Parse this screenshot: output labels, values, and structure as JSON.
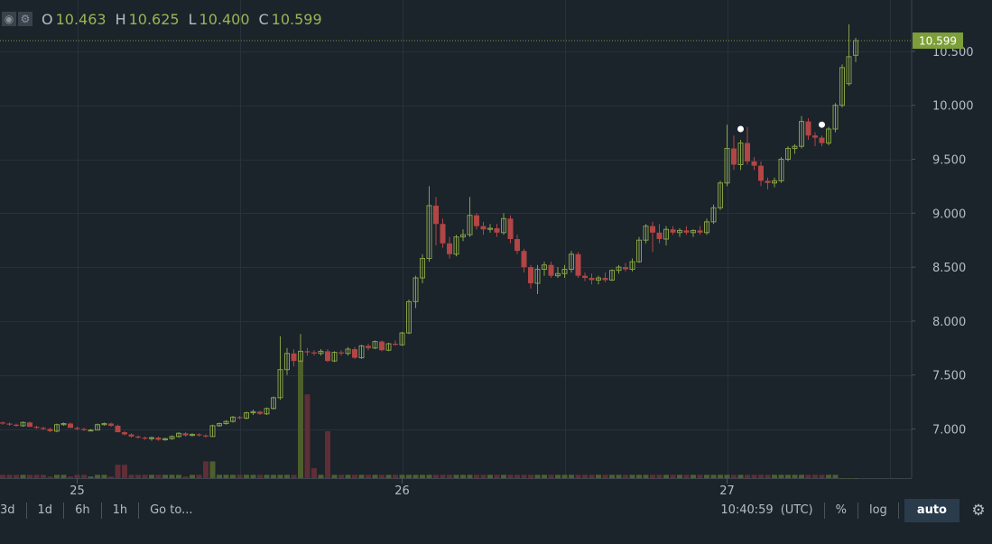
{
  "toolbar": {
    "icons": [
      "eye-icon",
      "gear-icon"
    ],
    "open_label": "O",
    "open_value": "10.463",
    "high_label": "H",
    "high_value": "10.625",
    "low_label": "L",
    "low_value": "10.400",
    "close_label": "C",
    "close_value": "10.599"
  },
  "last_price_label": "10.599",
  "bottom_bar": {
    "ranges": [
      "3d",
      "1d",
      "6h",
      "1h"
    ],
    "goto_label": "Go to...",
    "time": "10:40:59",
    "timezone": "(UTC)",
    "percent_label": "%",
    "log_label": "log",
    "auto_label": "auto"
  },
  "colors": {
    "background": "#1b232b",
    "up": "#84a045",
    "down": "#b24545",
    "grid": "#27323b",
    "text": "#b4bcc4",
    "price_tag": "#7d9f3a"
  },
  "chart_data": {
    "type": "candlestick",
    "interval": "1h",
    "y_ticks": [
      7.0,
      7.5,
      8.0,
      8.5,
      9.0,
      9.5,
      10.0,
      10.5
    ],
    "y_tick_labels": [
      "7.000",
      "7.500",
      "8.000",
      "8.500",
      "9.000",
      "9.500",
      "10.000",
      "10.500"
    ],
    "x_tick_labels": [
      "25",
      "26",
      "27"
    ],
    "day_start_index": [
      11,
      59,
      107
    ],
    "last_price": 10.599,
    "marker_indices": [
      109,
      121,
      127,
      128
    ],
    "candles": [
      [
        7.06,
        7.07,
        7.04,
        7.05
      ],
      [
        7.05,
        7.06,
        7.03,
        7.04
      ],
      [
        7.04,
        7.05,
        7.02,
        7.03
      ],
      [
        7.03,
        7.07,
        7.02,
        7.06
      ],
      [
        7.06,
        7.07,
        7.02,
        7.02
      ],
      [
        7.02,
        7.03,
        7.0,
        7.01
      ],
      [
        7.01,
        7.02,
        6.99,
        7.0
      ],
      [
        7.0,
        7.01,
        6.97,
        6.98
      ],
      [
        6.98,
        7.05,
        6.97,
        7.04
      ],
      [
        7.04,
        7.06,
        7.03,
        7.05
      ],
      [
        7.05,
        7.06,
        7.01,
        7.01
      ],
      [
        7.01,
        7.02,
        6.99,
        7.0
      ],
      [
        7.0,
        7.01,
        6.98,
        6.99
      ],
      [
        6.99,
        7.0,
        6.98,
        6.99
      ],
      [
        6.99,
        7.05,
        6.99,
        7.04
      ],
      [
        7.04,
        7.06,
        7.03,
        7.05
      ],
      [
        7.05,
        7.06,
        7.02,
        7.03
      ],
      [
        7.03,
        7.04,
        6.97,
        6.97
      ],
      [
        6.97,
        6.98,
        6.94,
        6.95
      ],
      [
        6.95,
        6.96,
        6.92,
        6.93
      ],
      [
        6.93,
        6.94,
        6.91,
        6.92
      ],
      [
        6.92,
        6.93,
        6.9,
        6.91
      ],
      [
        6.91,
        6.93,
        6.89,
        6.92
      ],
      [
        6.92,
        6.93,
        6.89,
        6.9
      ],
      [
        6.9,
        6.92,
        6.89,
        6.91
      ],
      [
        6.91,
        6.94,
        6.9,
        6.93
      ],
      [
        6.93,
        6.97,
        6.92,
        6.96
      ],
      [
        6.96,
        6.97,
        6.93,
        6.94
      ],
      [
        6.94,
        6.96,
        6.93,
        6.95
      ],
      [
        6.95,
        6.96,
        6.93,
        6.94
      ],
      [
        6.94,
        6.95,
        6.92,
        6.93
      ],
      [
        6.93,
        7.04,
        6.93,
        7.03
      ],
      [
        7.03,
        7.06,
        7.02,
        7.05
      ],
      [
        7.05,
        7.08,
        7.04,
        7.07
      ],
      [
        7.07,
        7.12,
        7.06,
        7.11
      ],
      [
        7.11,
        7.12,
        7.09,
        7.1
      ],
      [
        7.1,
        7.16,
        7.09,
        7.15
      ],
      [
        7.15,
        7.18,
        7.13,
        7.16
      ],
      [
        7.16,
        7.17,
        7.13,
        7.14
      ],
      [
        7.14,
        7.2,
        7.13,
        7.19
      ],
      [
        7.19,
        7.3,
        7.18,
        7.29
      ],
      [
        7.29,
        7.86,
        7.27,
        7.55
      ],
      [
        7.55,
        7.75,
        7.5,
        7.7
      ],
      [
        7.7,
        7.74,
        7.58,
        7.63
      ],
      [
        7.63,
        7.88,
        7.62,
        7.72
      ],
      [
        7.72,
        7.75,
        7.68,
        7.71
      ],
      [
        7.71,
        7.73,
        7.68,
        7.7
      ],
      [
        7.7,
        7.74,
        7.68,
        7.72
      ],
      [
        7.72,
        7.74,
        7.62,
        7.63
      ],
      [
        7.63,
        7.72,
        7.62,
        7.71
      ],
      [
        7.71,
        7.73,
        7.68,
        7.7
      ],
      [
        7.7,
        7.76,
        7.68,
        7.74
      ],
      [
        7.74,
        7.76,
        7.65,
        7.66
      ],
      [
        7.66,
        7.78,
        7.65,
        7.77
      ],
      [
        7.77,
        7.79,
        7.73,
        7.75
      ],
      [
        7.75,
        7.82,
        7.74,
        7.81
      ],
      [
        7.81,
        7.82,
        7.72,
        7.73
      ],
      [
        7.73,
        7.8,
        7.72,
        7.79
      ],
      [
        7.79,
        7.82,
        7.77,
        7.78
      ],
      [
        7.78,
        7.9,
        7.77,
        7.89
      ],
      [
        7.89,
        8.2,
        7.88,
        8.18
      ],
      [
        8.18,
        8.42,
        8.12,
        8.4
      ],
      [
        8.4,
        8.62,
        8.35,
        8.58
      ],
      [
        8.58,
        9.25,
        8.55,
        9.07
      ],
      [
        9.07,
        9.15,
        8.7,
        8.9
      ],
      [
        8.9,
        8.95,
        8.68,
        8.72
      ],
      [
        8.72,
        8.78,
        8.58,
        8.62
      ],
      [
        8.62,
        8.8,
        8.6,
        8.78
      ],
      [
        8.78,
        8.85,
        8.74,
        8.8
      ],
      [
        8.8,
        9.15,
        8.78,
        8.98
      ],
      [
        8.98,
        9.0,
        8.85,
        8.88
      ],
      [
        8.88,
        8.92,
        8.8,
        8.85
      ],
      [
        8.85,
        8.9,
        8.82,
        8.86
      ],
      [
        8.86,
        8.9,
        8.78,
        8.82
      ],
      [
        8.82,
        9.0,
        8.8,
        8.95
      ],
      [
        8.95,
        8.98,
        8.72,
        8.76
      ],
      [
        8.76,
        8.8,
        8.62,
        8.65
      ],
      [
        8.65,
        8.67,
        8.45,
        8.5
      ],
      [
        8.5,
        8.52,
        8.3,
        8.35
      ],
      [
        8.35,
        8.52,
        8.25,
        8.48
      ],
      [
        8.48,
        8.55,
        8.42,
        8.52
      ],
      [
        8.52,
        8.55,
        8.4,
        8.42
      ],
      [
        8.42,
        8.5,
        8.4,
        8.44
      ],
      [
        8.44,
        8.52,
        8.4,
        8.48
      ],
      [
        8.48,
        8.65,
        8.45,
        8.62
      ],
      [
        8.62,
        8.64,
        8.4,
        8.42
      ],
      [
        8.42,
        8.45,
        8.37,
        8.4
      ],
      [
        8.4,
        8.44,
        8.34,
        8.38
      ],
      [
        8.38,
        8.42,
        8.34,
        8.4
      ],
      [
        8.4,
        8.45,
        8.36,
        8.38
      ],
      [
        8.38,
        8.48,
        8.37,
        8.47
      ],
      [
        8.47,
        8.52,
        8.44,
        8.5
      ],
      [
        8.5,
        8.54,
        8.46,
        8.48
      ],
      [
        8.48,
        8.58,
        8.46,
        8.55
      ],
      [
        8.55,
        8.78,
        8.54,
        8.75
      ],
      [
        8.75,
        8.9,
        8.72,
        8.88
      ],
      [
        8.88,
        8.92,
        8.64,
        8.82
      ],
      [
        8.82,
        8.9,
        8.72,
        8.76
      ],
      [
        8.76,
        8.88,
        8.7,
        8.85
      ],
      [
        8.85,
        8.88,
        8.8,
        8.82
      ],
      [
        8.82,
        8.86,
        8.78,
        8.84
      ],
      [
        8.84,
        8.88,
        8.8,
        8.82
      ],
      [
        8.82,
        8.85,
        8.78,
        8.84
      ],
      [
        8.84,
        8.88,
        8.8,
        8.82
      ],
      [
        8.82,
        8.95,
        8.8,
        8.92
      ],
      [
        8.92,
        9.08,
        8.9,
        9.05
      ],
      [
        9.05,
        9.3,
        9.03,
        9.28
      ],
      [
        9.28,
        9.82,
        9.25,
        9.6
      ],
      [
        9.6,
        9.72,
        9.4,
        9.45
      ],
      [
        9.45,
        9.68,
        9.4,
        9.65
      ],
      [
        9.65,
        9.8,
        9.45,
        9.48
      ],
      [
        9.48,
        9.52,
        9.4,
        9.44
      ],
      [
        9.44,
        9.48,
        9.25,
        9.3
      ],
      [
        9.3,
        9.33,
        9.22,
        9.28
      ],
      [
        9.28,
        9.33,
        9.24,
        9.3
      ],
      [
        9.3,
        9.52,
        9.28,
        9.5
      ],
      [
        9.5,
        9.62,
        9.48,
        9.6
      ],
      [
        9.6,
        9.64,
        9.55,
        9.62
      ],
      [
        9.62,
        9.9,
        9.6,
        9.85
      ],
      [
        9.85,
        9.88,
        9.68,
        9.72
      ],
      [
        9.72,
        9.75,
        9.62,
        9.7
      ],
      [
        9.7,
        9.72,
        9.62,
        9.65
      ],
      [
        9.65,
        9.8,
        9.63,
        9.78
      ],
      [
        9.78,
        10.02,
        9.75,
        10.0
      ],
      [
        10.0,
        10.38,
        9.98,
        10.35
      ],
      [
        10.2,
        10.75,
        10.18,
        10.45
      ],
      [
        10.463,
        10.625,
        10.4,
        10.599
      ]
    ],
    "volumes": [
      1,
      1,
      1,
      1,
      1,
      1,
      1,
      0.5,
      1,
      1,
      0.5,
      1,
      1,
      0.5,
      1,
      1,
      0.5,
      4,
      4,
      1,
      1,
      1,
      1,
      1,
      1,
      1,
      1,
      0.5,
      1,
      1,
      5,
      5,
      1,
      1,
      1,
      1,
      1,
      1,
      1,
      1,
      1,
      1,
      1,
      1,
      35,
      25,
      3,
      1,
      14,
      1,
      1,
      1,
      1,
      1,
      1,
      1,
      1,
      1,
      1,
      1,
      1,
      1,
      1,
      1,
      1,
      1,
      1,
      1,
      1,
      1,
      1,
      1,
      1,
      1,
      1,
      1,
      1,
      1,
      1,
      1,
      1,
      1,
      1,
      1,
      1,
      1,
      1,
      1,
      1,
      1,
      1,
      1,
      1,
      1,
      1,
      1,
      1,
      1,
      1,
      1,
      1,
      1,
      1,
      1,
      1,
      1,
      1,
      1,
      1,
      1,
      1,
      1,
      1,
      1,
      1,
      1,
      1,
      1,
      1,
      1,
      1,
      1,
      1,
      1
    ]
  }
}
